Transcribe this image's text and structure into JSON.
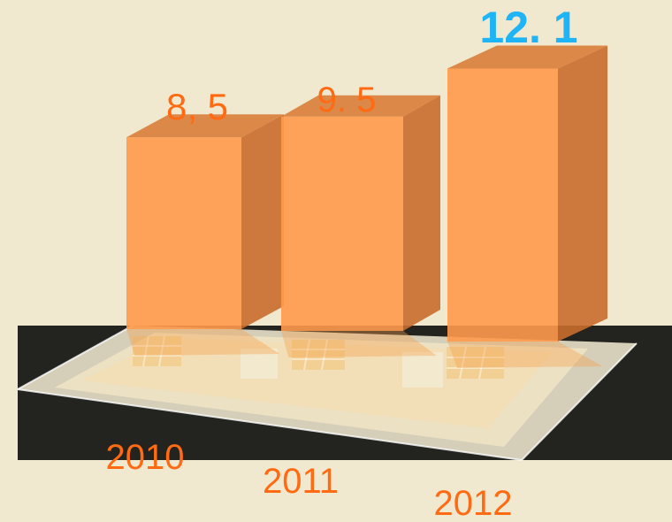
{
  "chart_data": {
    "type": "bar",
    "categories": [
      "2010",
      "2011",
      "2012"
    ],
    "values": [
      8.5,
      9.5,
      12.1
    ],
    "value_labels": [
      "8, 5",
      "9. 5",
      "12. 1"
    ],
    "title": "",
    "xlabel": "",
    "ylabel": "",
    "ylim": [
      0,
      13
    ],
    "grid": false,
    "legend": "none"
  },
  "colors": {
    "background": "#f1e9cf",
    "bar_front": "#ff9a4c",
    "bar_side": "#c96d2c",
    "bar_top": "#d87d3a",
    "value_label": "#ff6a13",
    "highlight_value_label": "#1fb4f5",
    "category_label": "#ff6a13",
    "platform": "#d7cfb4",
    "platform_dark": "#1a1a1a"
  }
}
